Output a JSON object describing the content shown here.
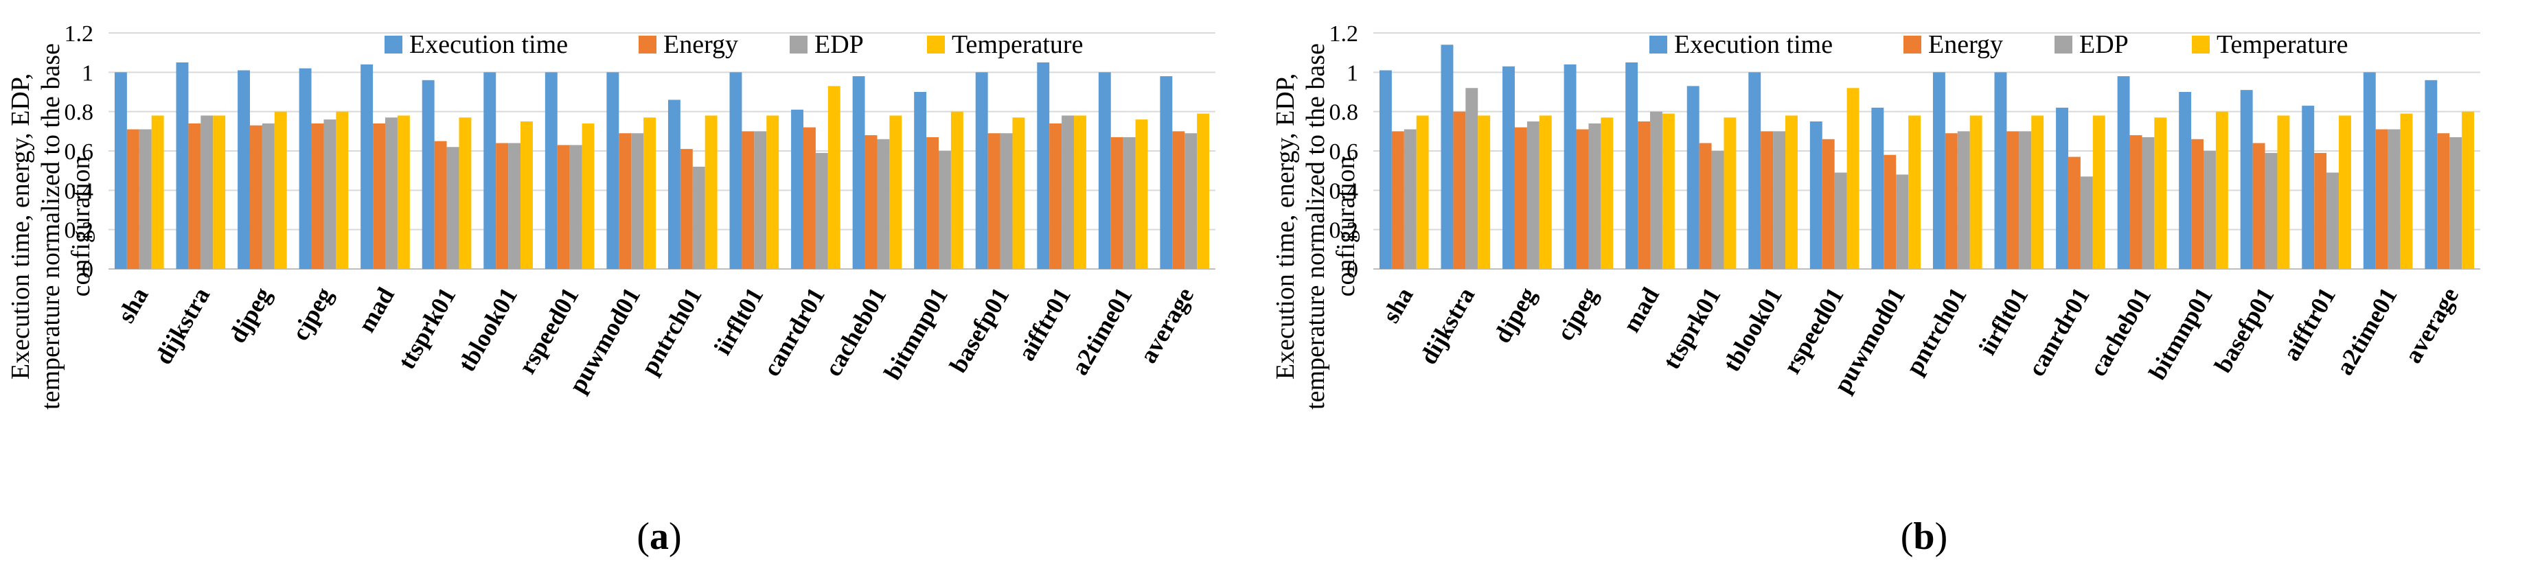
{
  "chart_data": [
    {
      "type": "bar",
      "subfigure_label": "a",
      "ylabel": "Execution time, energy, EDP, temperature normalized to the base configuration",
      "ylim": [
        0,
        1.2
      ],
      "yticks": [
        "0",
        "0.2",
        "0.4",
        "0.6",
        "0.8",
        "1",
        "1.2"
      ],
      "legend_position": "top",
      "grid": true,
      "categories": [
        "sha",
        "dijkstra",
        "djpeg",
        "cjpeg",
        "mad",
        "ttsprk01",
        "tblook01",
        "rspeed01",
        "puwmod01",
        "pntrch01",
        "iirflt01",
        "canrdr01",
        "cacheb01",
        "bitmnp01",
        "basefp01",
        "aifftr01",
        "a2time01",
        "average"
      ],
      "series": [
        {
          "name": "Execution time",
          "color": "#5B9BD5",
          "values": [
            1.0,
            1.05,
            1.01,
            1.02,
            1.04,
            0.96,
            1.0,
            1.0,
            1.0,
            0.86,
            1.0,
            0.81,
            0.98,
            0.9,
            1.0,
            1.05,
            1.0,
            0.98
          ]
        },
        {
          "name": "Energy",
          "color": "#ED7D31",
          "values": [
            0.71,
            0.74,
            0.73,
            0.74,
            0.74,
            0.65,
            0.64,
            0.63,
            0.69,
            0.61,
            0.7,
            0.72,
            0.68,
            0.67,
            0.69,
            0.74,
            0.67,
            0.7
          ]
        },
        {
          "name": "EDP",
          "color": "#A5A5A5",
          "values": [
            0.71,
            0.78,
            0.74,
            0.76,
            0.77,
            0.62,
            0.64,
            0.63,
            0.69,
            0.52,
            0.7,
            0.59,
            0.66,
            0.6,
            0.69,
            0.78,
            0.67,
            0.69
          ]
        },
        {
          "name": "Temperature",
          "color": "#FFC000",
          "values": [
            0.78,
            0.78,
            0.8,
            0.8,
            0.78,
            0.77,
            0.75,
            0.74,
            0.77,
            0.78,
            0.78,
            0.93,
            0.78,
            0.8,
            0.77,
            0.78,
            0.76,
            0.79
          ]
        }
      ]
    },
    {
      "type": "bar",
      "subfigure_label": "b",
      "ylabel": "Execution time, energy, EDP, temperature normalized to the base configuration",
      "ylim": [
        0,
        1.2
      ],
      "yticks": [
        "0",
        "0.2",
        "0.4",
        "0.6",
        "0.8",
        "1",
        "1.2"
      ],
      "legend_position": "top",
      "grid": true,
      "categories": [
        "sha",
        "dijkstra",
        "djpeg",
        "cjpeg",
        "mad",
        "ttsprk01",
        "tblook01",
        "rspeed01",
        "puwmod01",
        "pntrch01",
        "iirflt01",
        "canrdr01",
        "cacheb01",
        "bitmnp01",
        "basefp01",
        "aifftr01",
        "a2time01",
        "average"
      ],
      "series": [
        {
          "name": "Execution time",
          "color": "#5B9BD5",
          "values": [
            1.01,
            1.14,
            1.03,
            1.04,
            1.05,
            0.93,
            1.0,
            0.75,
            0.82,
            1.0,
            1.0,
            0.82,
            0.98,
            0.9,
            0.91,
            0.83,
            1.0,
            0.96
          ]
        },
        {
          "name": "Energy",
          "color": "#ED7D31",
          "values": [
            0.7,
            0.8,
            0.72,
            0.71,
            0.75,
            0.64,
            0.7,
            0.66,
            0.58,
            0.69,
            0.7,
            0.57,
            0.68,
            0.66,
            0.64,
            0.59,
            0.71,
            0.69
          ]
        },
        {
          "name": "EDP",
          "color": "#A5A5A5",
          "values": [
            0.71,
            0.92,
            0.75,
            0.74,
            0.8,
            0.6,
            0.7,
            0.49,
            0.48,
            0.7,
            0.7,
            0.47,
            0.67,
            0.6,
            0.59,
            0.49,
            0.71,
            0.67
          ]
        },
        {
          "name": "Temperature",
          "color": "#FFC000",
          "values": [
            0.78,
            0.78,
            0.78,
            0.77,
            0.79,
            0.77,
            0.78,
            0.92,
            0.78,
            0.78,
            0.78,
            0.78,
            0.77,
            0.8,
            0.78,
            0.78,
            0.79,
            0.8
          ]
        }
      ]
    }
  ]
}
